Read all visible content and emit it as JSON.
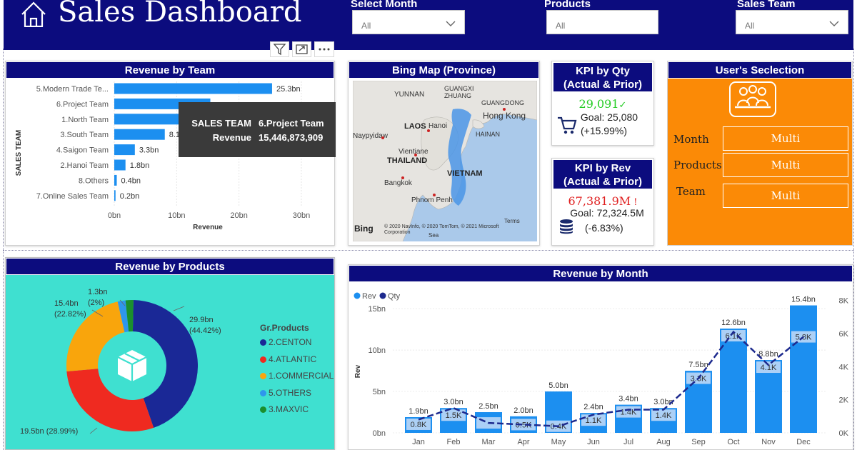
{
  "header": {
    "title": "Sales Dashboard",
    "slicers": [
      {
        "label": "Select Month",
        "value": "All"
      },
      {
        "label": "Products",
        "value": "All"
      },
      {
        "label": "Sales Team",
        "value": "All"
      }
    ]
  },
  "icons": {
    "home": "home-icon",
    "filter": "filter-icon",
    "focus": "focus-mode-icon",
    "more": "more-options-icon",
    "cart": "cart-icon",
    "coins": "coins-icon",
    "box": "box-icon",
    "team": "team-icon"
  },
  "colors": {
    "header": "#0c0c7e",
    "bar": "#1c8ff0",
    "qty_line": "#1d2a8e",
    "orange": "#fb8a06",
    "teal": "#3fe0d0"
  },
  "revenue_by_team": {
    "title": "Revenue by Team",
    "ylabel": "SALES TEAM",
    "xlabel": "Revenue",
    "chart_data": {
      "type": "bar",
      "orientation": "horizontal",
      "categories": [
        "5.Modern Trade Te...",
        "6.Project Team",
        "1.North Team",
        "3.South Team",
        "4.Saigon Team",
        "2.Hanoi Team",
        "8.Others",
        "7.Online Sales Team"
      ],
      "values": [
        25.3,
        15.4,
        11.5,
        8.1,
        3.3,
        1.8,
        0.4,
        0.2
      ],
      "labels": [
        "25.3bn",
        "",
        "",
        "8.1b",
        "3.3bn",
        "1.8bn",
        "0.4bn",
        "0.2bn"
      ],
      "xticks": [
        "0bn",
        "10bn",
        "20bn",
        "30bn"
      ],
      "xlim": [
        0,
        30
      ]
    },
    "tooltip": {
      "k1": "SALES TEAM",
      "v1": "6.Project Team",
      "k2": "Revenue",
      "v2": "15,446,873,909"
    }
  },
  "map": {
    "title": "Bing Map (Province)",
    "labels": {
      "yunnan": "YUNNAN",
      "guangxi": "GUANGXI\nZHUANG",
      "guangdong": "GUANGDONG",
      "hongkong": "Hong Kong",
      "naypyidaw": "Naypyidaw",
      "laos": "LAOS",
      "hanoi": "Hanoi",
      "hainan": "HAINAN",
      "vientiane": "Vientiane",
      "thailand": "THAILAND",
      "vietnam": "VIETNAM",
      "bangkok": "Bangkok",
      "phnompenh": "Phnom Penh",
      "bing": "Bing",
      "copyright": "© 2020 NavInfo, © 2020 TomTom, © 2021 Microsoft Corporation",
      "terms": "Terms",
      "sea": "Sea"
    }
  },
  "kpi_qty": {
    "title": "KPI by Qty",
    "subtitle": "(Actual & Prior)",
    "value": "29,091",
    "goal": "Goal: 25,080",
    "pct": "(+15.99%)"
  },
  "kpi_rev": {
    "title": "KPI by Rev",
    "subtitle": "(Actual & Prior)",
    "value": "67,381.9M",
    "goal": "Goal: 72,324.5M",
    "pct": "(-6.83%)"
  },
  "user_selection": {
    "title": "User's Seclection",
    "rows": [
      {
        "label": "Month",
        "value": "Multi"
      },
      {
        "label": "Products",
        "value": "Multi"
      },
      {
        "label": "Team",
        "value": "Multi"
      }
    ]
  },
  "revenue_by_products": {
    "title": "Revenue by Products",
    "legend_title": "Gr.Products",
    "chart_data": {
      "type": "pie",
      "donut": true,
      "slices": [
        {
          "name": "2.CENTON",
          "value": 29.9,
          "pct": 44.42,
          "label1": "29.9bn",
          "label2": "(44.42%)",
          "color": "#1a2896"
        },
        {
          "name": "4.ATLANTIC",
          "value": 19.5,
          "pct": 28.99,
          "label1": "19.5bn (28.99%)",
          "label2": "",
          "color": "#ef2a20"
        },
        {
          "name": "1.COMMERCIAL",
          "value": 15.4,
          "pct": 22.82,
          "label1": "15.4bn",
          "label2": "(22.82%)",
          "color": "#f9a50c"
        },
        {
          "name": "5.OTHERS",
          "value": 1.3,
          "pct": 1.8,
          "label1": "",
          "label2": "",
          "color": "#2f96ec"
        },
        {
          "name": "3.MAXVIC",
          "value": 1.3,
          "pct": 2.0,
          "label1": "1.3bn",
          "label2": "(2%)",
          "color": "#1b8f2e"
        }
      ]
    }
  },
  "revenue_by_month": {
    "title": "Revenue by Month",
    "legend": [
      "Rev",
      "Qty"
    ],
    "ylabel": "Rev",
    "chart_data": {
      "type": "bar",
      "combo_line": true,
      "categories": [
        "Jan",
        "Feb",
        "Mar",
        "Apr",
        "May",
        "Jun",
        "Jul",
        "Aug",
        "Sep",
        "Oct",
        "Nov",
        "Dec"
      ],
      "series": [
        {
          "name": "Rev",
          "values": [
            1.9,
            3.0,
            2.5,
            2.0,
            5.0,
            2.4,
            3.4,
            3.0,
            7.5,
            12.6,
            8.8,
            15.4
          ],
          "labels": [
            "1.9bn",
            "3.0bn",
            "2.5bn",
            "2.0bn",
            "5.0bn",
            "2.4bn",
            "3.4bn",
            "3.0bn",
            "7.5bn",
            "12.6bn",
            "8.8bn",
            "15.4bn"
          ]
        },
        {
          "name": "Qty",
          "values": [
            0.8,
            1.5,
            0.6,
            0.5,
            0.4,
            1.1,
            1.4,
            1.4,
            3.3,
            6.1,
            4.1,
            5.8
          ],
          "labels": [
            "0.8K",
            "1.5K",
            "",
            "0.5K",
            "0.4K",
            "1.1K",
            "1.4K",
            "1.4K",
            "3.3K",
            "6.1K",
            "4.1K",
            "5.8K"
          ]
        }
      ],
      "yticks_left": [
        "0bn",
        "5bn",
        "10bn",
        "15bn"
      ],
      "yticks_right": [
        "0K",
        "2K",
        "4K",
        "6K",
        "8K"
      ],
      "ylim_left": [
        0,
        17
      ],
      "ylim_right": [
        0,
        8.5
      ]
    }
  }
}
